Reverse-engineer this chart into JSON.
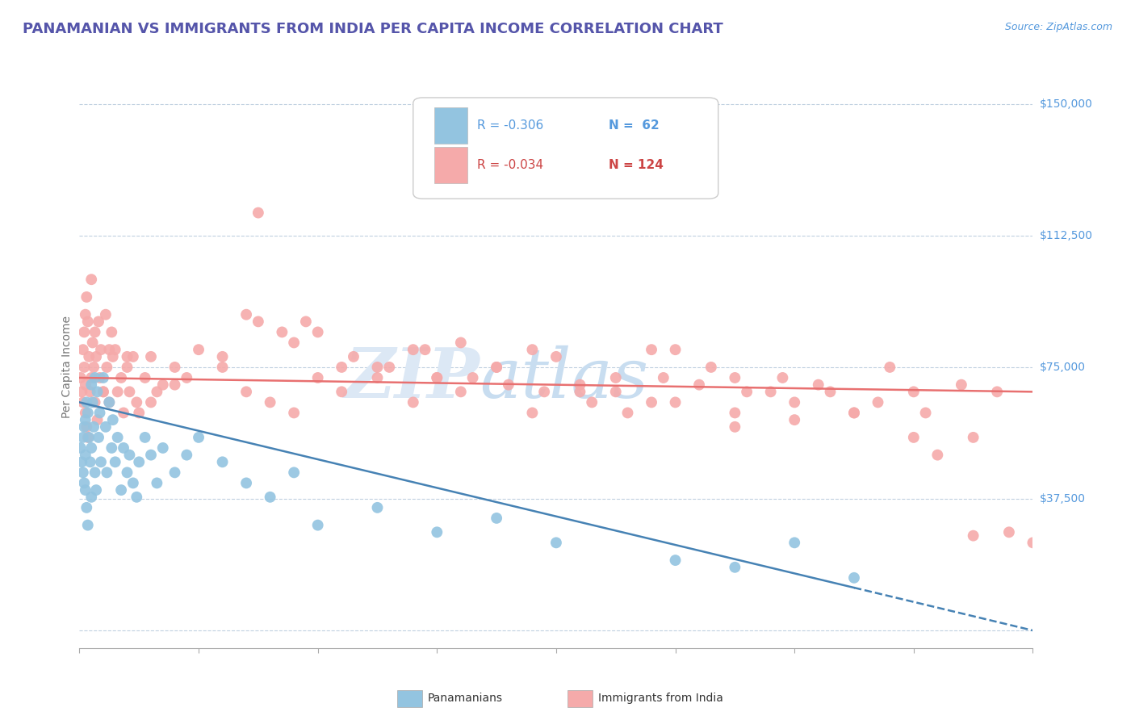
{
  "title": "PANAMANIAN VS IMMIGRANTS FROM INDIA PER CAPITA INCOME CORRELATION CHART",
  "source_text": "Source: ZipAtlas.com",
  "ylabel": "Per Capita Income",
  "xlim": [
    0.0,
    0.8
  ],
  "ylim": [
    -5000,
    155000
  ],
  "ytick_vals": [
    0,
    37500,
    75000,
    112500,
    150000
  ],
  "ytick_labels": [
    "",
    "$37,500",
    "$75,000",
    "$112,500",
    "$150,000"
  ],
  "xtick_vals": [
    0.0,
    0.1,
    0.2,
    0.3,
    0.4,
    0.5,
    0.6,
    0.7,
    0.8
  ],
  "legend_r1": "R = -0.306",
  "legend_n1": "N =  62",
  "legend_r2": "R = -0.034",
  "legend_n2": "N = 124",
  "legend_label1": "Panamanians",
  "legend_label2": "Immigrants from India",
  "color_blue": "#93C4E0",
  "color_pink": "#F5AAAA",
  "color_line_blue": "#4682B4",
  "color_line_pink": "#E87070",
  "title_color": "#5555aa",
  "tick_label_color": "#5599dd",
  "watermark_zip_color": "#d8e8f5",
  "watermark_atlas_color": "#c8dff0",
  "grid_color": "#c0d0e0",
  "background_color": "#ffffff",
  "pan_x": [
    0.001,
    0.002,
    0.003,
    0.003,
    0.004,
    0.004,
    0.005,
    0.005,
    0.005,
    0.006,
    0.006,
    0.007,
    0.007,
    0.008,
    0.009,
    0.01,
    0.01,
    0.01,
    0.011,
    0.012,
    0.013,
    0.013,
    0.014,
    0.015,
    0.016,
    0.017,
    0.018,
    0.02,
    0.022,
    0.023,
    0.025,
    0.027,
    0.028,
    0.03,
    0.032,
    0.035,
    0.037,
    0.04,
    0.042,
    0.045,
    0.048,
    0.05,
    0.055,
    0.06,
    0.065,
    0.07,
    0.08,
    0.09,
    0.1,
    0.12,
    0.14,
    0.16,
    0.18,
    0.2,
    0.25,
    0.3,
    0.35,
    0.4,
    0.5,
    0.55,
    0.6,
    0.65
  ],
  "pan_y": [
    52000,
    48000,
    55000,
    45000,
    58000,
    42000,
    60000,
    50000,
    40000,
    65000,
    35000,
    62000,
    30000,
    55000,
    48000,
    70000,
    52000,
    38000,
    65000,
    58000,
    45000,
    72000,
    40000,
    68000,
    55000,
    62000,
    48000,
    72000,
    58000,
    45000,
    65000,
    52000,
    60000,
    48000,
    55000,
    40000,
    52000,
    45000,
    50000,
    42000,
    38000,
    48000,
    55000,
    50000,
    42000,
    52000,
    45000,
    50000,
    55000,
    48000,
    42000,
    38000,
    45000,
    30000,
    35000,
    28000,
    32000,
    25000,
    20000,
    18000,
    25000,
    15000
  ],
  "ind_x": [
    0.001,
    0.002,
    0.003,
    0.003,
    0.004,
    0.004,
    0.005,
    0.005,
    0.005,
    0.006,
    0.006,
    0.007,
    0.007,
    0.008,
    0.009,
    0.01,
    0.01,
    0.011,
    0.012,
    0.013,
    0.013,
    0.014,
    0.015,
    0.016,
    0.017,
    0.018,
    0.02,
    0.022,
    0.023,
    0.025,
    0.027,
    0.028,
    0.03,
    0.032,
    0.035,
    0.037,
    0.04,
    0.042,
    0.045,
    0.048,
    0.05,
    0.055,
    0.06,
    0.065,
    0.07,
    0.08,
    0.09,
    0.1,
    0.12,
    0.14,
    0.16,
    0.18,
    0.2,
    0.22,
    0.25,
    0.28,
    0.3,
    0.32,
    0.35,
    0.38,
    0.4,
    0.42,
    0.45,
    0.48,
    0.5,
    0.52,
    0.55,
    0.58,
    0.6,
    0.62,
    0.65,
    0.68,
    0.7,
    0.75,
    0.78,
    0.42,
    0.5,
    0.55,
    0.35,
    0.28,
    0.2,
    0.15,
    0.12,
    0.55,
    0.3,
    0.45,
    0.38,
    0.22,
    0.18,
    0.08,
    0.06,
    0.04,
    0.25,
    0.6,
    0.7,
    0.72,
    0.65,
    0.48,
    0.32,
    0.14,
    0.17,
    0.19,
    0.23,
    0.26,
    0.29,
    0.33,
    0.36,
    0.39,
    0.43,
    0.46,
    0.49,
    0.53,
    0.56,
    0.59,
    0.63,
    0.67,
    0.71,
    0.74,
    0.77,
    0.8,
    0.02,
    0.025,
    0.15,
    0.75
  ],
  "ind_y": [
    72000,
    68000,
    80000,
    65000,
    85000,
    75000,
    90000,
    70000,
    62000,
    95000,
    58000,
    88000,
    55000,
    78000,
    68000,
    100000,
    72000,
    82000,
    75000,
    65000,
    85000,
    78000,
    60000,
    88000,
    72000,
    80000,
    68000,
    90000,
    75000,
    65000,
    85000,
    78000,
    80000,
    68000,
    72000,
    62000,
    75000,
    68000,
    78000,
    65000,
    62000,
    72000,
    78000,
    68000,
    70000,
    75000,
    72000,
    80000,
    75000,
    68000,
    65000,
    62000,
    72000,
    68000,
    75000,
    65000,
    72000,
    68000,
    75000,
    62000,
    78000,
    68000,
    72000,
    65000,
    80000,
    70000,
    72000,
    68000,
    65000,
    70000,
    62000,
    75000,
    68000,
    55000,
    28000,
    70000,
    65000,
    58000,
    75000,
    80000,
    85000,
    88000,
    78000,
    62000,
    72000,
    68000,
    80000,
    75000,
    82000,
    70000,
    65000,
    78000,
    72000,
    60000,
    55000,
    50000,
    62000,
    80000,
    82000,
    90000,
    85000,
    88000,
    78000,
    75000,
    80000,
    72000,
    70000,
    68000,
    65000,
    62000,
    72000,
    75000,
    68000,
    72000,
    68000,
    65000,
    62000,
    70000,
    68000,
    25000,
    68000,
    80000,
    119000,
    27000
  ]
}
